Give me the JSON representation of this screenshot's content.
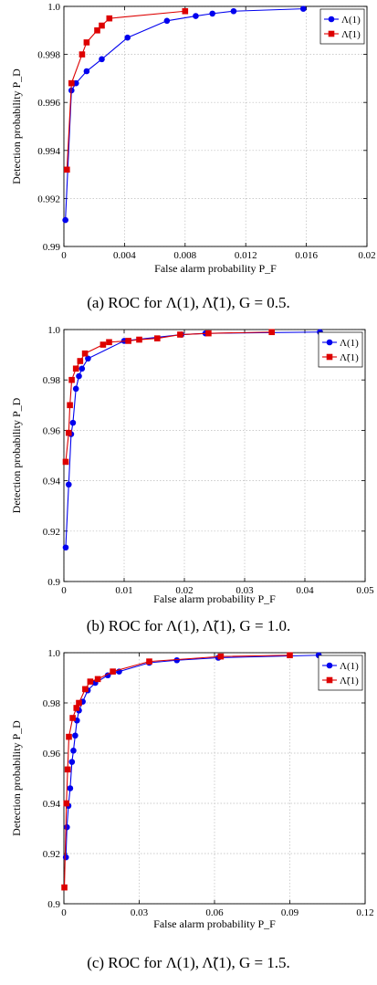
{
  "chart_data": [
    {
      "type": "line",
      "xlabel": "False alarm probability P_F",
      "ylabel": "Detection probability P_D",
      "xlim": [
        0,
        0.02
      ],
      "ylim": [
        0.99,
        1.0
      ],
      "x_ticks": [
        "0",
        "0.004",
        "0.008",
        "0.012",
        "0.016",
        "0.02"
      ],
      "x_tick_values": [
        0,
        0.004,
        0.008,
        0.012,
        0.016,
        0.02
      ],
      "y_ticks": [
        "0.99",
        "0.992",
        "0.994",
        "0.996",
        "0.998",
        "1.0"
      ],
      "y_tick_values": [
        0.99,
        0.992,
        0.994,
        0.996,
        0.998,
        1.0
      ],
      "grid": true,
      "legend": "top-right",
      "caption": "(a) ROC for Λ(1), Λ̃(1), G = 0.5.",
      "series": [
        {
          "name": "Λ(1)",
          "color": "#0000ee",
          "marker": "circle",
          "x": [
            0.0001,
            0.0005,
            0.0008,
            0.0015,
            0.0025,
            0.0042,
            0.0068,
            0.0087,
            0.0098,
            0.0112,
            0.0158
          ],
          "y": [
            0.9911,
            0.9965,
            0.9968,
            0.9973,
            0.9978,
            0.9987,
            0.9994,
            0.9996,
            0.9997,
            0.9998,
            0.9999
          ]
        },
        {
          "name": "Λ̃(1)",
          "color": "#dd0000",
          "marker": "square",
          "x": [
            0.0002,
            0.0005,
            0.0012,
            0.0015,
            0.0022,
            0.0025,
            0.003,
            0.008
          ],
          "y": [
            0.9932,
            0.9968,
            0.998,
            0.9985,
            0.999,
            0.9992,
            0.9995,
            0.9998
          ]
        }
      ]
    },
    {
      "type": "line",
      "xlabel": "False alarm probability P_F",
      "ylabel": "Detection probability P_D",
      "xlim": [
        0,
        0.05
      ],
      "ylim": [
        0.9,
        1.0
      ],
      "x_ticks": [
        "0",
        "0.01",
        "0.02",
        "0.03",
        "0.04",
        "0.05"
      ],
      "x_tick_values": [
        0,
        0.01,
        0.02,
        0.03,
        0.04,
        0.05
      ],
      "y_ticks": [
        "0.9",
        "0.92",
        "0.94",
        "0.96",
        "0.98",
        "1.0"
      ],
      "y_tick_values": [
        0.9,
        0.92,
        0.94,
        0.96,
        0.98,
        1.0
      ],
      "grid": true,
      "legend": "top-right",
      "caption": "(b) ROC for Λ(1), Λ̃(1), G = 1.0.",
      "series": [
        {
          "name": "Λ(1)",
          "color": "#0000ee",
          "marker": "circle",
          "x": [
            0.0003,
            0.0008,
            0.0012,
            0.0015,
            0.002,
            0.0025,
            0.003,
            0.004,
            0.01,
            0.0195,
            0.0235,
            0.0425
          ],
          "y": [
            0.9135,
            0.9385,
            0.9585,
            0.963,
            0.9765,
            0.9815,
            0.9845,
            0.9885,
            0.9955,
            0.998,
            0.9985,
            0.999
          ]
        },
        {
          "name": "Λ̃(1)",
          "color": "#dd0000",
          "marker": "square",
          "x": [
            0.0003,
            0.0008,
            0.001,
            0.0013,
            0.002,
            0.0027,
            0.0035,
            0.0065,
            0.0075,
            0.0107,
            0.0125,
            0.0155,
            0.0193,
            0.024,
            0.0345
          ],
          "y": [
            0.9475,
            0.959,
            0.97,
            0.98,
            0.9845,
            0.9875,
            0.9905,
            0.994,
            0.995,
            0.9955,
            0.996,
            0.9965,
            0.998,
            0.9985,
            0.999
          ]
        }
      ]
    },
    {
      "type": "line",
      "xlabel": "False alarm probability P_F",
      "ylabel": "Detection probability P_D",
      "xlim": [
        0,
        0.12
      ],
      "ylim": [
        0.9,
        1.0
      ],
      "x_ticks": [
        "0",
        "0.03",
        "0.06",
        "0.09",
        "0.12"
      ],
      "x_tick_values": [
        0,
        0.03,
        0.06,
        0.09,
        0.12
      ],
      "y_ticks": [
        "0.9",
        "0.92",
        "0.94",
        "0.96",
        "0.98",
        "1.0"
      ],
      "y_tick_values": [
        0.9,
        0.92,
        0.94,
        0.96,
        0.98,
        1.0
      ],
      "grid": true,
      "legend": "top-right",
      "caption": "(c) ROC for Λ(1), Λ̃(1), G = 1.5.",
      "series": [
        {
          "name": "Λ(1)",
          "color": "#0000ee",
          "marker": "circle",
          "x": [
            0.0008,
            0.0012,
            0.0018,
            0.0025,
            0.0032,
            0.0038,
            0.0045,
            0.0052,
            0.006,
            0.0075,
            0.0095,
            0.0125,
            0.0175,
            0.022,
            0.034,
            0.045,
            0.0615,
            0.1015
          ],
          "y": [
            0.9185,
            0.9305,
            0.939,
            0.946,
            0.9565,
            0.961,
            0.967,
            0.973,
            0.977,
            0.9805,
            0.985,
            0.988,
            0.991,
            0.9925,
            0.996,
            0.997,
            0.998,
            0.999
          ]
        },
        {
          "name": "Λ̃(1)",
          "color": "#dd0000",
          "marker": "square",
          "x": [
            0.0002,
            0.001,
            0.0015,
            0.002,
            0.0035,
            0.005,
            0.006,
            0.0085,
            0.0105,
            0.0135,
            0.0195,
            0.034,
            0.0625,
            0.09
          ],
          "y": [
            0.9065,
            0.94,
            0.9535,
            0.9665,
            0.974,
            0.978,
            0.98,
            0.9855,
            0.9885,
            0.9895,
            0.9925,
            0.9965,
            0.9985,
            0.999
          ]
        }
      ]
    }
  ]
}
